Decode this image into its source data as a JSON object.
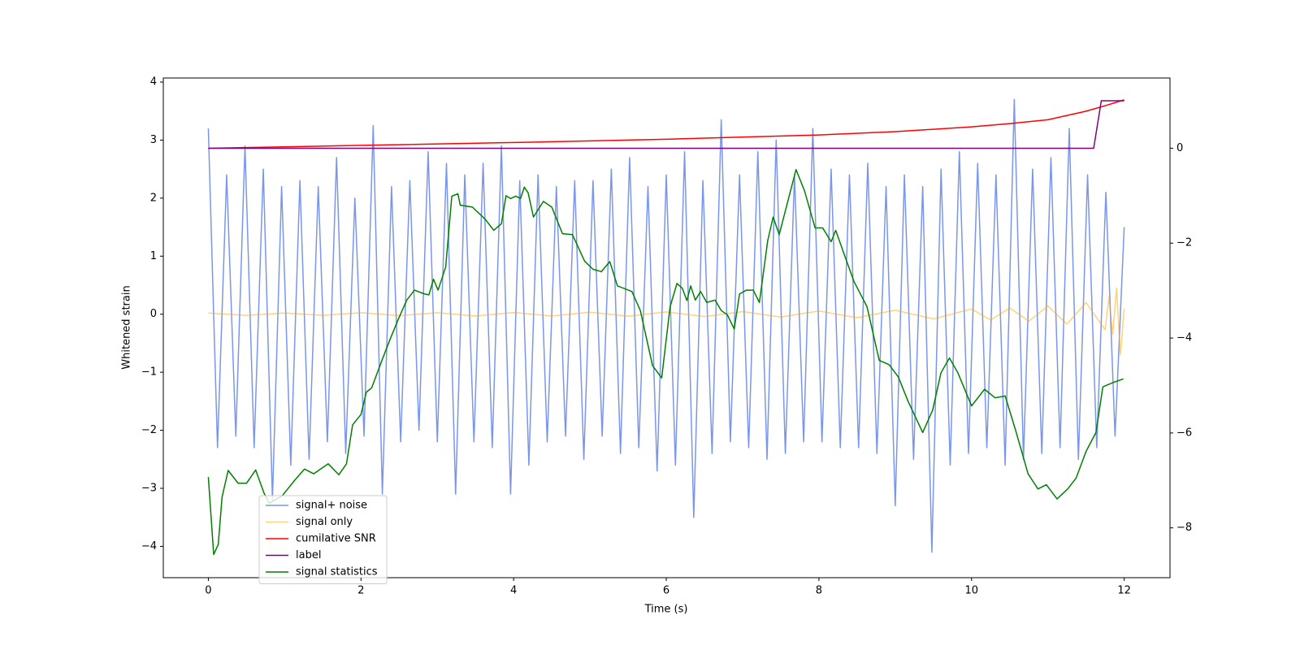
{
  "chart_data": {
    "type": "line",
    "x_label": "Time (s)",
    "y_label": "Whitened strain",
    "xlim": [
      -0.59,
      12.6
    ],
    "xticks": [
      0,
      2,
      4,
      6,
      8,
      10,
      12
    ],
    "ylim": [
      -4.54,
      4.07
    ],
    "yticks": [
      {
        "value": -4,
        "label": "−4"
      },
      {
        "value": -3,
        "label": "−3"
      },
      {
        "value": -2,
        "label": "−2"
      },
      {
        "value": -1,
        "label": "−1"
      },
      0,
      1,
      2,
      3,
      4
    ],
    "y2lim": [
      -9.05,
      1.48
    ],
    "y2ticks": [
      {
        "value": -8,
        "label": "−8"
      },
      {
        "value": -6,
        "label": "−6"
      },
      {
        "value": -4,
        "label": "−4"
      },
      {
        "value": -2,
        "label": "−2"
      },
      0
    ],
    "legend": "lower left",
    "series": [
      {
        "name": "signal+ noise",
        "color": "#4169e1",
        "alpha": 0.7,
        "x": [
          0,
          0.12,
          0.24,
          0.36,
          0.48,
          0.6,
          0.72,
          0.84,
          0.96,
          1.08,
          1.2,
          1.32,
          1.44,
          1.56,
          1.68,
          1.8,
          1.92,
          2.04,
          2.16,
          2.28,
          2.4,
          2.52,
          2.64,
          2.76,
          2.88,
          3.0,
          3.12,
          3.24,
          3.36,
          3.48,
          3.6,
          3.72,
          3.84,
          3.96,
          4.08,
          4.2,
          4.32,
          4.44,
          4.56,
          4.68,
          4.8,
          4.92,
          5.04,
          5.16,
          5.28,
          5.4,
          5.52,
          5.64,
          5.76,
          5.88,
          6.0,
          6.12,
          6.24,
          6.36,
          6.48,
          6.6,
          6.72,
          6.84,
          6.96,
          7.08,
          7.2,
          7.32,
          7.44,
          7.56,
          7.68,
          7.8,
          7.92,
          8.04,
          8.16,
          8.28,
          8.4,
          8.52,
          8.64,
          8.76,
          8.88,
          9.0,
          9.12,
          9.24,
          9.36,
          9.48,
          9.6,
          9.72,
          9.84,
          9.96,
          10.08,
          10.2,
          10.32,
          10.44,
          10.56,
          10.68,
          10.8,
          10.92,
          11.04,
          11.16,
          11.28,
          11.4,
          11.52,
          11.64,
          11.76,
          11.88,
          12.0
        ],
        "values": [
          3.2,
          -2.3,
          2.4,
          -2.1,
          2.9,
          -2.3,
          2.5,
          -3.2,
          2.2,
          -2.6,
          2.3,
          -2.5,
          2.2,
          -2.2,
          2.7,
          -2.4,
          2.0,
          -2.1,
          3.25,
          -3.1,
          2.2,
          -2.2,
          2.3,
          -2.0,
          2.8,
          -2.2,
          2.6,
          -3.1,
          2.4,
          -2.2,
          2.6,
          -2.3,
          2.9,
          -3.1,
          2.3,
          -2.6,
          2.4,
          -2.2,
          2.2,
          -2.1,
          2.3,
          -2.5,
          2.3,
          -2.1,
          2.5,
          -2.4,
          2.7,
          -2.3,
          2.2,
          -2.7,
          2.4,
          -2.6,
          2.8,
          -3.5,
          2.3,
          -2.4,
          3.35,
          -2.2,
          2.4,
          -2.3,
          2.8,
          -2.5,
          3.0,
          -2.4,
          2.4,
          -2.2,
          3.2,
          -2.2,
          2.5,
          -2.3,
          2.4,
          -2.3,
          2.6,
          -2.4,
          2.2,
          -3.3,
          2.4,
          -2.5,
          2.2,
          -4.1,
          2.5,
          -2.6,
          2.8,
          -2.4,
          2.6,
          -2.3,
          2.4,
          -2.6,
          3.7,
          -2.5,
          2.5,
          -2.4,
          2.7,
          -2.3,
          3.2,
          -2.5,
          2.4,
          -2.3,
          2.1,
          -2.1,
          1.5
        ]
      },
      {
        "name": "signal only",
        "color": "#ffa500",
        "alpha": 0.5,
        "x": [
          0,
          0.5,
          1,
          1.5,
          2,
          2.5,
          3,
          3.5,
          4,
          4.5,
          5,
          5.5,
          6,
          6.5,
          7,
          7.5,
          8,
          8.5,
          9,
          9.5,
          10,
          10.25,
          10.5,
          10.75,
          11,
          11.25,
          11.5,
          11.75,
          11.8,
          11.85,
          11.9,
          11.95,
          12
        ],
        "values": [
          0.02,
          -0.02,
          0.02,
          -0.02,
          0.025,
          -0.025,
          0.025,
          -0.03,
          0.03,
          -0.03,
          0.035,
          -0.035,
          0.04,
          -0.04,
          0.045,
          -0.05,
          0.055,
          -0.06,
          0.07,
          -0.08,
          0.09,
          -0.1,
          0.11,
          -0.12,
          0.14,
          -0.17,
          0.2,
          -0.27,
          0.3,
          -0.35,
          0.45,
          -0.7,
          0.1
        ]
      },
      {
        "name": "cumilative SNR",
        "color": "#ff0000",
        "axis": "y2",
        "x": [
          0,
          2,
          4,
          6,
          8,
          9,
          10,
          10.5,
          11,
          11.5,
          11.8,
          12
        ],
        "values": [
          0,
          0.06,
          0.12,
          0.19,
          0.28,
          0.35,
          0.45,
          0.52,
          0.6,
          0.78,
          0.92,
          1.02
        ]
      },
      {
        "name": "label",
        "color": "#800080",
        "axis": "y2",
        "x": [
          0,
          11.6,
          11.7,
          12
        ],
        "values": [
          0,
          0,
          1,
          1
        ]
      },
      {
        "name": "signal statistics",
        "color": "#008000",
        "axis": "y2",
        "x": [
          0,
          0.07,
          0.13,
          0.18,
          0.26,
          0.39,
          0.5,
          0.62,
          0.73,
          0.8,
          0.97,
          1.13,
          1.26,
          1.38,
          1.57,
          1.71,
          1.81,
          1.89,
          2.0,
          2.07,
          2.14,
          2.27,
          2.38,
          2.49,
          2.6,
          2.7,
          2.83,
          2.89,
          2.95,
          3.01,
          3.11,
          3.19,
          3.27,
          3.3,
          3.46,
          3.63,
          3.74,
          3.84,
          3.9,
          3.96,
          4.03,
          4.09,
          4.14,
          4.19,
          4.26,
          4.39,
          4.5,
          4.64,
          4.77,
          4.93,
          5.04,
          5.15,
          5.26,
          5.36,
          5.55,
          5.66,
          5.82,
          5.94,
          6.05,
          6.14,
          6.21,
          6.27,
          6.32,
          6.38,
          6.45,
          6.53,
          6.64,
          6.72,
          6.8,
          6.89,
          6.96,
          7.05,
          7.14,
          7.22,
          7.33,
          7.4,
          7.48,
          7.61,
          7.7,
          7.81,
          7.95,
          8.05,
          8.16,
          8.22,
          8.35,
          8.46,
          8.63,
          8.79,
          8.92,
          9.04,
          9.17,
          9.36,
          9.49,
          9.6,
          9.71,
          9.82,
          10.0,
          10.17,
          10.31,
          10.44,
          10.58,
          10.74,
          10.87,
          10.98,
          11.12,
          11.26,
          11.37,
          11.5,
          11.63,
          11.72,
          11.85,
          11.99
        ],
        "values": [
          -6.93,
          -8.56,
          -8.35,
          -7.35,
          -6.79,
          -7.06,
          -7.06,
          -6.78,
          -7.27,
          -7.48,
          -7.32,
          -7.0,
          -6.76,
          -6.86,
          -6.65,
          -6.88,
          -6.65,
          -5.83,
          -5.61,
          -5.14,
          -5.05,
          -4.49,
          -4.03,
          -3.6,
          -3.2,
          -2.99,
          -3.07,
          -3.09,
          -2.76,
          -2.99,
          -2.5,
          -1.01,
          -0.96,
          -1.2,
          -1.24,
          -1.5,
          -1.73,
          -1.59,
          -1.0,
          -1.06,
          -1.01,
          -1.06,
          -0.82,
          -0.94,
          -1.45,
          -1.12,
          -1.24,
          -1.8,
          -1.82,
          -2.38,
          -2.55,
          -2.6,
          -2.39,
          -2.9,
          -3.02,
          -3.42,
          -4.58,
          -4.84,
          -3.34,
          -2.85,
          -2.95,
          -3.21,
          -2.9,
          -3.2,
          -3.02,
          -3.25,
          -3.2,
          -3.42,
          -3.51,
          -3.81,
          -3.07,
          -2.99,
          -2.99,
          -3.25,
          -1.94,
          -1.45,
          -1.82,
          -1.01,
          -0.45,
          -0.89,
          -1.68,
          -1.68,
          -1.97,
          -1.73,
          -2.32,
          -2.81,
          -3.34,
          -4.47,
          -4.56,
          -4.82,
          -5.34,
          -5.99,
          -5.52,
          -4.73,
          -4.42,
          -4.73,
          -5.43,
          -5.08,
          -5.26,
          -5.22,
          -5.96,
          -6.86,
          -7.18,
          -7.09,
          -7.39,
          -7.18,
          -6.95,
          -6.39,
          -5.99,
          -5.03,
          -4.94,
          -4.86
        ]
      }
    ]
  }
}
